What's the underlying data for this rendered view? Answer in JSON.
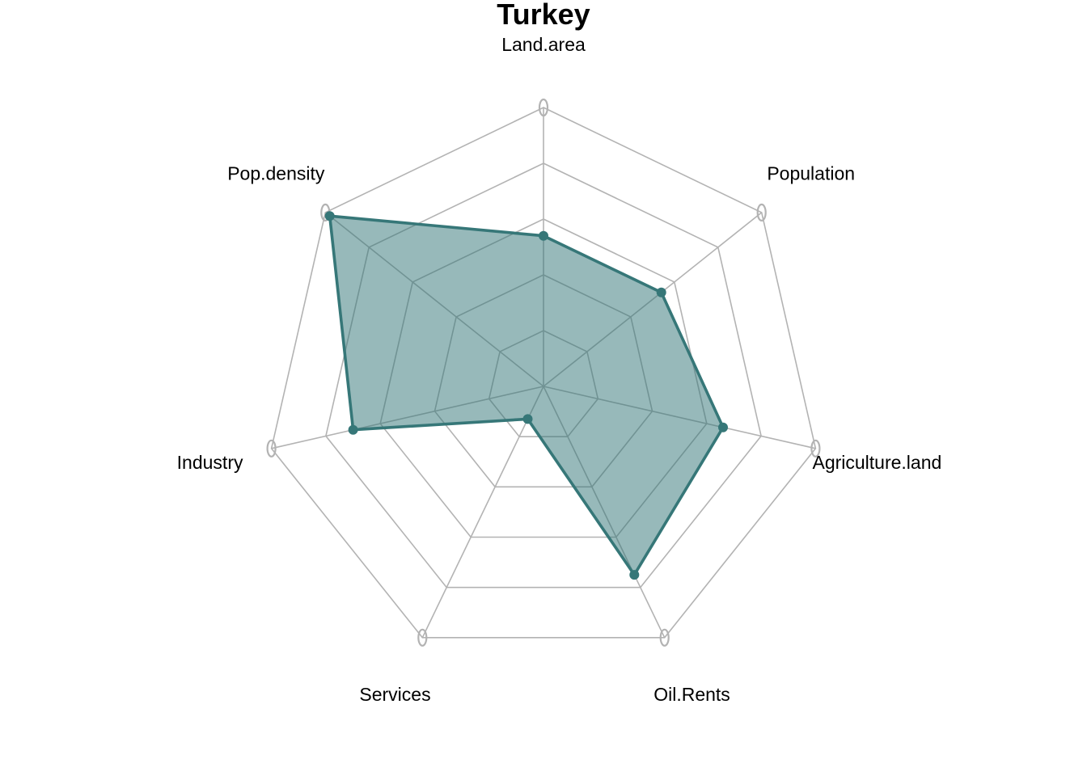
{
  "chart_data": {
    "type": "radar",
    "title": "Turkey",
    "axes": [
      "Land.area",
      "Population",
      "Agriculture.land",
      "Oil.Rents",
      "Services",
      "Industry",
      "Pop.density"
    ],
    "range": [
      0,
      1
    ],
    "grid_levels": 5,
    "series": [
      {
        "values": [
          0.54,
          0.54,
          0.66,
          0.75,
          0.13,
          0.7,
          0.98
        ],
        "fill_color": "#2f7476",
        "fill_opacity": 0.5,
        "line_color": "#367778"
      }
    ],
    "ring_color": "#b3b3b3"
  }
}
